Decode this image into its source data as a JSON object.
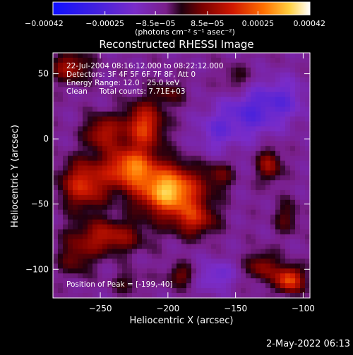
{
  "chart_data": {
    "type": "heatmap",
    "title": "Reconstructed RHESSI Image",
    "xlabel": "Heliocentric X (arcsec)",
    "ylabel": "Heliocentric Y (arcsec)",
    "xlim": [
      -285,
      -95
    ],
    "ylim": [
      -122,
      66
    ],
    "xticks": [
      -250,
      -200,
      -150,
      -100
    ],
    "xtick_labels": [
      "−250",
      "−200",
      "−150",
      "−100"
    ],
    "yticks": [
      50,
      0,
      -50,
      -100
    ],
    "ytick_labels": [
      "50",
      "0",
      "−50",
      "−100"
    ],
    "colorbar": {
      "range": [
        -0.00042,
        0.00042
      ],
      "ticks": [
        -0.00042,
        -0.00025,
        -8.5e-05,
        8.5e-05,
        0.00025,
        0.00042
      ],
      "tick_labels": [
        "−0.00042",
        "−0.00025",
        "−8.5e−05",
        "8.5e−05",
        "0.00025",
        "0.00042"
      ],
      "units": "(photons cm⁻² s⁻¹ asec⁻²)"
    },
    "info_lines": [
      "22-Jul-2004 08:16:12.000 to 08:22:12.000",
      "Detectors: 3F 4F 5F 6F 7F 8F, Att 0",
      "Energy Range: 12.0 - 25.0 keV",
      "Clean     Total counts: 7.71E+03"
    ],
    "peak_label": "Position of Peak = [-199,-40]",
    "peak": [
      -199,
      -40
    ],
    "sources": [
      {
        "x": -199,
        "y": -40,
        "amp": 0.00042,
        "sx": 16,
        "sy": 13
      },
      {
        "x": -228,
        "y": -22,
        "amp": 0.00032,
        "sx": 13,
        "sy": 11
      },
      {
        "x": -218,
        "y": 10,
        "amp": 0.00027,
        "sx": 10,
        "sy": 12
      },
      {
        "x": -248,
        "y": 5,
        "amp": 0.0002,
        "sx": 9,
        "sy": 9
      },
      {
        "x": -262,
        "y": -35,
        "amp": 0.00025,
        "sx": 12,
        "sy": 13
      },
      {
        "x": -272,
        "y": 55,
        "amp": 0.00018,
        "sx": 10,
        "sy": 8
      },
      {
        "x": -245,
        "y": -75,
        "amp": 0.0002,
        "sx": 18,
        "sy": 9
      },
      {
        "x": -268,
        "y": -92,
        "amp": 0.00012,
        "sx": 9,
        "sy": 9
      },
      {
        "x": -180,
        "y": -62,
        "amp": 0.00019,
        "sx": 11,
        "sy": 9
      },
      {
        "x": -110,
        "y": -108,
        "amp": 0.0003,
        "sx": 7,
        "sy": 7
      },
      {
        "x": -130,
        "y": -98,
        "amp": 0.00016,
        "sx": 8,
        "sy": 8
      },
      {
        "x": -125,
        "y": -20,
        "amp": 0.00018,
        "sx": 6,
        "sy": 9
      },
      {
        "x": -162,
        "y": -28,
        "amp": 0.00011,
        "sx": 7,
        "sy": 8
      },
      {
        "x": -150,
        "y": 45,
        "amp": 9e-05,
        "sx": 8,
        "sy": 8
      },
      {
        "x": -112,
        "y": -60,
        "amp": 0.0001,
        "sx": 7,
        "sy": 9
      },
      {
        "x": -200,
        "y": 35,
        "amp": 0.0001,
        "sx": 9,
        "sy": 7
      },
      {
        "x": -190,
        "y": -105,
        "amp": 0.00013,
        "sx": 8,
        "sy": 6
      },
      {
        "x": -230,
        "y": -110,
        "amp": 8e-05,
        "sx": 8,
        "sy": 6
      },
      {
        "x": -165,
        "y": -105,
        "amp": -0.00012,
        "sx": 10,
        "sy": 8
      },
      {
        "x": -140,
        "y": 20,
        "amp": -0.00015,
        "sx": 14,
        "sy": 14
      },
      {
        "x": -115,
        "y": 30,
        "amp": -0.00012,
        "sx": 12,
        "sy": 12
      },
      {
        "x": -165,
        "y": 5,
        "amp": -0.0001,
        "sx": 10,
        "sy": 12
      }
    ]
  },
  "footer": {
    "timestamp": "2-May-2022 06:13"
  },
  "colors": {
    "background": "#000000",
    "text": "#ffffff"
  }
}
